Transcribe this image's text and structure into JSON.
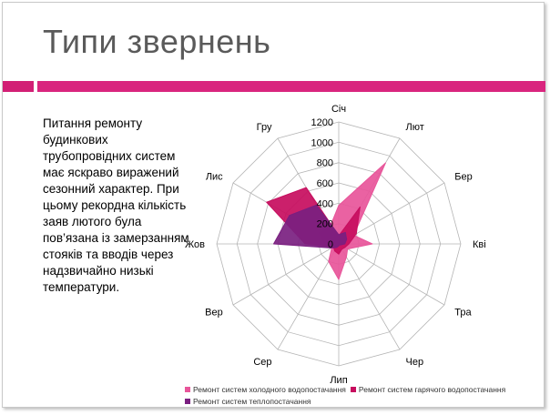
{
  "slide": {
    "title": "Типи звернень",
    "body": "Питання ремонту будинкових трубопровідних систем має яскраво виражений сезонний характер. При цьому рекордна кількість заяв лютого була пов’язана із замерзанням стояків та вводів через надзвичайно низькі температури."
  },
  "colors": {
    "accent": "#d9257e",
    "accent_dark": "#d21f75",
    "title_text": "#5a5a5a"
  },
  "chart_data": {
    "type": "radar",
    "categories": [
      "Січ",
      "Лют",
      "Бер",
      "Кві",
      "Тра",
      "Чер",
      "Лип",
      "Сер",
      "Вер",
      "Жов",
      "Лис",
      "Гру"
    ],
    "ticks": [
      "0",
      "200",
      "400",
      "600",
      "800",
      "1000",
      "1200"
    ],
    "rmax": 1200,
    "grid": true,
    "legend_position": "bottom",
    "series": [
      {
        "name": "Ремонт систем холодного водопостачання",
        "color": "#e8559a",
        "values": [
          380,
          920,
          170,
          330,
          100,
          150,
          350,
          200,
          80,
          140,
          220,
          180
        ]
      },
      {
        "name": "Ремонт систем гарячого водопостачання",
        "color": "#c70d5e",
        "values": [
          80,
          420,
          200,
          100,
          70,
          60,
          100,
          80,
          60,
          330,
          820,
          640
        ]
      },
      {
        "name": "Ремонт систем теплопостачання",
        "color": "#7a1f80",
        "values": [
          90,
          130,
          90,
          60,
          20,
          10,
          20,
          40,
          80,
          640,
          560,
          440
        ]
      }
    ]
  }
}
